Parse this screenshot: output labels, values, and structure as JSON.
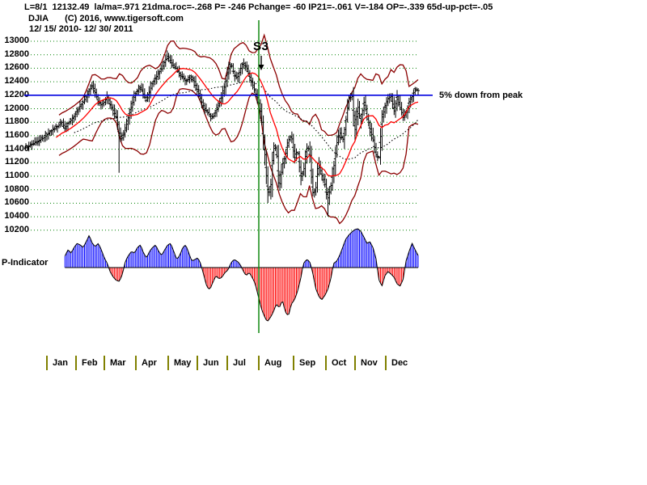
{
  "header": {
    "stats_line": "L=8/1  12132.49  la/ma=.971 21dma.roc=-.268 P= -246 Pchange= -60 IP21=-.061 V=-184 OP=-.339 65d-up-pct=-.05",
    "symbol": "DJIA",
    "copyright": "(C) 2016, www.tigersoft.com",
    "date_range": "12/ 15/ 2010- 12/ 30/ 2011"
  },
  "annotations": {
    "signal_label": "S3",
    "reference_note": "5% down from peak",
    "indicator_label": "P-Indicator"
  },
  "colors": {
    "background": "#ffffff",
    "grid_green": "#008000",
    "signal_line_green": "#008000",
    "reference_blue": "#0000e0",
    "histogram_positive": "#0000ff",
    "histogram_negative": "#ff0000",
    "ma21_red": "#ff0000",
    "band_maroon": "#8b0000",
    "price_black": "#000000",
    "month_separator_olive": "#808000",
    "text_black": "#000000"
  },
  "chart_data": {
    "type": "candlestick",
    "title": "DJIA",
    "date_range": "12/ 15/ 2010- 12/ 30/ 2011",
    "y_axis": {
      "min": 10200,
      "max": 13000,
      "step": 200,
      "ticks": [
        13000,
        12800,
        12600,
        12400,
        12200,
        12000,
        11800,
        11600,
        11400,
        11200,
        11000,
        10800,
        10600,
        10400,
        10200
      ]
    },
    "x_axis": {
      "months": [
        "Jan",
        "Feb",
        "Mar",
        "Apr",
        "May",
        "Jun",
        "Jul",
        "Aug",
        "Sep",
        "Oct",
        "Nov",
        "Dec"
      ]
    },
    "price_series": {
      "name": "DJIA",
      "closes": [
        11430,
        11450,
        11470,
        11500,
        11520,
        11550,
        11570,
        11620,
        11660,
        11690,
        11720,
        11760,
        11800,
        11700,
        11790,
        11830,
        11890,
        11960,
        12040,
        12100,
        12180,
        12270,
        12350,
        12230,
        12100,
        12060,
        12100,
        12180,
        12050,
        11970,
        11870,
        11610,
        11560,
        11700,
        11890,
        12040,
        12190,
        12280,
        12320,
        12200,
        12110,
        12260,
        12390,
        12450,
        12530,
        12600,
        12700,
        12790,
        12700,
        12630,
        12590,
        12510,
        12470,
        12400,
        12440,
        12480,
        12380,
        12260,
        12130,
        12020,
        11960,
        11900,
        11870,
        11960,
        12070,
        12190,
        12360,
        12570,
        12670,
        12510,
        12450,
        12570,
        12690,
        12620,
        12490,
        12380,
        12240,
        12130,
        11890,
        11440,
        10820,
        10740,
        11460,
        11400,
        10830,
        11170,
        11300,
        11530,
        11610,
        11250,
        11400,
        10990,
        11060,
        11420,
        11400,
        10750,
        10780,
        11180,
        11020,
        10910,
        10660,
        10830,
        11120,
        11480,
        11650,
        11520,
        11810,
        12160,
        12230,
        11660,
        12040,
        11790,
        12110,
        11900,
        11710,
        11550,
        11320,
        11250,
        11870,
        12020,
        12150,
        12190,
        11960,
        12180,
        12020,
        11870,
        11940,
        12100,
        12180,
        12290,
        12270
      ],
      "spike_lows": {
        "31": 11050,
        "80": 10604,
        "100": 10404
      }
    },
    "overlays": {
      "ma21_window_points": 10,
      "ma65_window_points": 30,
      "band_std_window": 10,
      "band_std_mult": 2.4,
      "band_min_offset": 300,
      "band_max_offset": 800
    },
    "reference_line": {
      "price": 12200,
      "label": "5% down from peak"
    },
    "signal": {
      "label": "S3",
      "month_index": 7
    },
    "p_indicator": {
      "label": "P-Indicator",
      "start_index": 13,
      "values": [
        0,
        0,
        0,
        0,
        0,
        0,
        0,
        0,
        0,
        0,
        0,
        0,
        0,
        15,
        22,
        18,
        25,
        30,
        28,
        25,
        32,
        40,
        30,
        26,
        30,
        22,
        12,
        5,
        -6,
        -12,
        -16,
        -17,
        -8,
        8,
        15,
        20,
        18,
        25,
        28,
        18,
        12,
        20,
        25,
        28,
        20,
        15,
        22,
        28,
        30,
        20,
        10,
        15,
        25,
        28,
        18,
        8,
        10,
        12,
        4,
        -10,
        -24,
        -27,
        -18,
        -10,
        -14,
        -12,
        -6,
        -3,
        6,
        10,
        8,
        4,
        -4,
        -10,
        -6,
        -12,
        -20,
        -35,
        -50,
        -60,
        -67,
        -62,
        -55,
        -45,
        -50,
        -40,
        -55,
        -60,
        -45,
        -40,
        -30,
        -15,
        5,
        10,
        8,
        -5,
        -25,
        -35,
        -40,
        -35,
        -28,
        -15,
        5,
        8,
        15,
        25,
        35,
        40,
        44,
        47,
        48,
        45,
        38,
        30,
        32,
        25,
        12,
        -15,
        -23,
        -10,
        -5,
        -8,
        -12,
        -20,
        -23,
        -15,
        8,
        20,
        30,
        22,
        15
      ]
    }
  }
}
